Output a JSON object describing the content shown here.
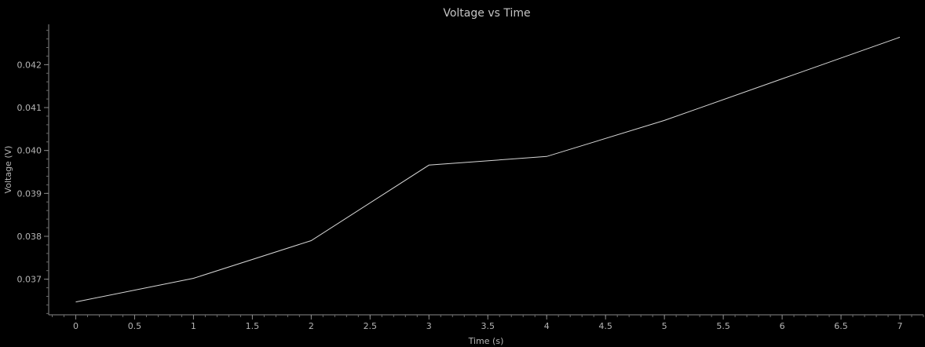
{
  "chart_data": {
    "type": "line",
    "title": "Voltage vs Time",
    "xlabel": "Time (s)",
    "ylabel": "Voltage (V)",
    "xlim": [
      -0.23,
      7.2
    ],
    "ylim": [
      0.03617,
      0.04294
    ],
    "x_ticks": [
      0,
      0.5,
      1,
      1.5,
      2,
      2.5,
      3,
      3.5,
      4,
      4.5,
      5,
      5.5,
      6,
      6.5,
      7
    ],
    "x_tick_labels": [
      "0",
      "0.5",
      "1",
      "1.5",
      "2",
      "2.5",
      "3",
      "3.5",
      "4",
      "4.5",
      "5",
      "5.5",
      "6",
      "6.5",
      "7"
    ],
    "y_ticks": [
      0.037,
      0.038,
      0.039,
      0.04,
      0.041,
      0.042
    ],
    "y_tick_labels": [
      "0.037",
      "0.038",
      "0.039",
      "0.040",
      "0.041",
      "0.042"
    ],
    "grid": false,
    "legend": "none",
    "colors": {
      "background": "#000000",
      "line": "#d6d6d6",
      "axis": "#8a8a8a",
      "text": "#b4b4b4"
    },
    "series": [
      {
        "x": [
          0,
          1,
          2,
          3,
          4,
          5,
          6,
          7
        ],
        "values": [
          0.03647,
          0.03702,
          0.0379,
          0.03966,
          0.03986,
          0.0407,
          0.04167,
          0.04264
        ]
      }
    ]
  }
}
